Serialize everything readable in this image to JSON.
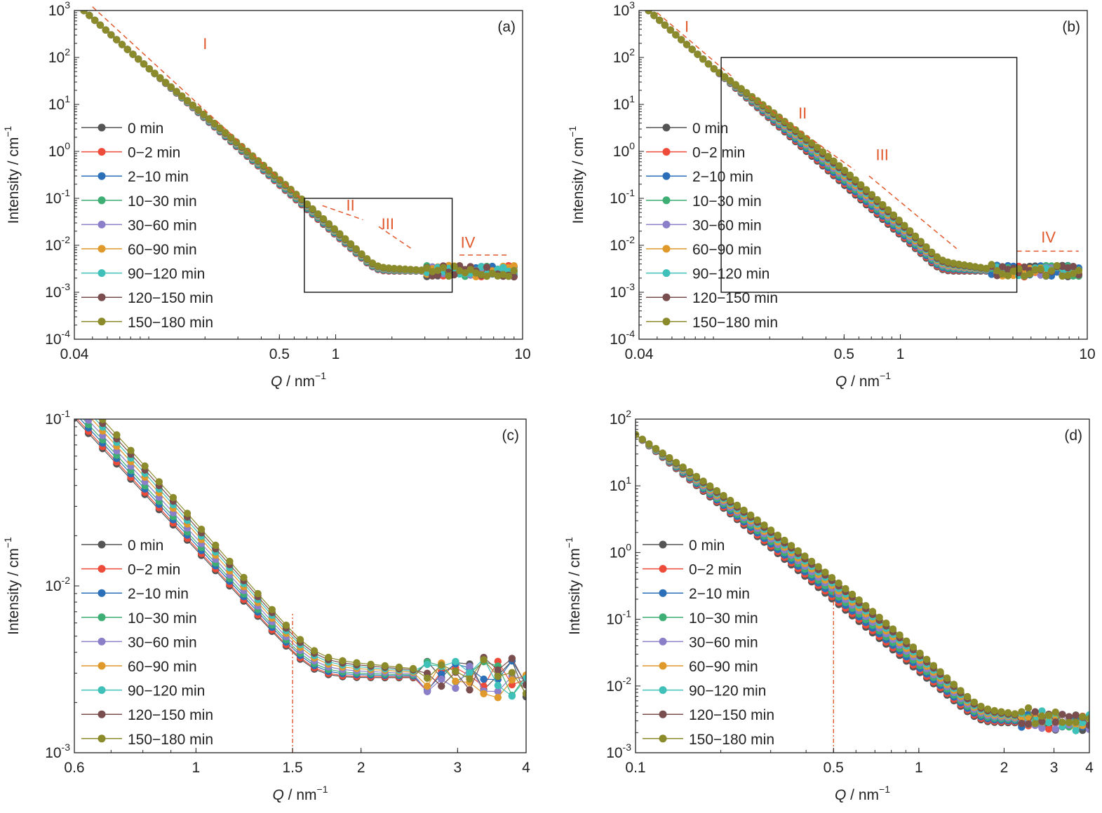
{
  "series_colors": [
    "#555555",
    "#ee4b3a",
    "#2a6fb8",
    "#3fae74",
    "#8a7fc8",
    "#e09a2c",
    "#3fc0b8",
    "#7a4e4e",
    "#8c8b2c"
  ],
  "chart_data": [
    {
      "id": "a",
      "type": "line",
      "panel_label": "(a)",
      "scale": "log-log",
      "grid": false,
      "legend_position": "center-left",
      "xlabel_italic": "Q",
      "xlabel_rest": " / nm",
      "xlabel_sup": "−1",
      "ylabel_main": "Intensity / cm",
      "ylabel_sup": "−1",
      "xlim": [
        0.04,
        10
      ],
      "ylim": [
        0.0001,
        1000
      ],
      "x_ticks": [
        {
          "v": 0.04,
          "label": "0.04"
        },
        {
          "v": 0.5,
          "label": "0.5"
        },
        {
          "v": 1,
          "label": "1"
        },
        {
          "v": 10,
          "label": "10"
        }
      ],
      "y_ticks": [
        {
          "v": 0.0001,
          "b": "10",
          "e": "-4"
        },
        {
          "v": 0.001,
          "b": "10",
          "e": "-3"
        },
        {
          "v": 0.01,
          "b": "10",
          "e": "-2"
        },
        {
          "v": 0.1,
          "b": "10",
          "e": "-1"
        },
        {
          "v": 1,
          "b": "10",
          "e": "0"
        },
        {
          "v": 10,
          "b": "10",
          "e": "1"
        },
        {
          "v": 100,
          "b": "10",
          "e": "2"
        },
        {
          "v": 1000,
          "b": "10",
          "e": "3"
        }
      ],
      "legend": [
        "0 min",
        "0−2 min",
        "2−10 min",
        "10−30 min",
        "30−60 min",
        "60−90 min",
        "90−120 min",
        "120−150 min",
        "150−180 min"
      ],
      "series_curve": {
        "q_min": 0.045,
        "q_max": 9,
        "n_points": 80,
        "noisy_above_q": 3
      },
      "series_spread": [
        1.0,
        1.02,
        1.06,
        1.1,
        1.16,
        1.2,
        1.24,
        1.28,
        1.32
      ],
      "region_labels": [
        {
          "text": "I",
          "q": 0.2,
          "i": 150
        },
        {
          "text": "II",
          "q": 1.2,
          "i": 0.055
        },
        {
          "text": "III",
          "q": 1.9,
          "i": 0.022
        },
        {
          "text": "IV",
          "q": 5.1,
          "i": 0.0088
        }
      ],
      "guide_lines": [
        {
          "q": [
            0.05,
            0.65
          ],
          "i": [
            1200,
            0.1
          ],
          "dash": true
        },
        {
          "q": [
            0.85,
            1.4
          ],
          "i": [
            0.07,
            0.035
          ],
          "dash": true
        },
        {
          "q": [
            1.7,
            2.6
          ],
          "i": [
            0.025,
            0.008
          ],
          "dash": true
        },
        {
          "q": [
            4.6,
            8.4
          ],
          "i": [
            0.0062,
            0.0062
          ],
          "dash": true
        }
      ],
      "box": {
        "q": [
          0.68,
          4.2
        ],
        "i": [
          0.001,
          0.1
        ]
      }
    },
    {
      "id": "b",
      "type": "line",
      "panel_label": "(b)",
      "scale": "log-log",
      "grid": false,
      "legend_position": "center-left",
      "xlabel_italic": "Q",
      "xlabel_rest": " / nm",
      "xlabel_sup": "−1",
      "ylabel_main": "Intensity / cm",
      "ylabel_sup": "−1",
      "xlim": [
        0.04,
        10
      ],
      "ylim": [
        0.0001,
        1000
      ],
      "x_ticks": [
        {
          "v": 0.04,
          "label": "0.04"
        },
        {
          "v": 0.5,
          "label": "0.5"
        },
        {
          "v": 1,
          "label": "1"
        },
        {
          "v": 10,
          "label": "10"
        }
      ],
      "y_ticks": [
        {
          "v": 0.0001,
          "b": "10",
          "e": "-4"
        },
        {
          "v": 0.001,
          "b": "10",
          "e": "-3"
        },
        {
          "v": 0.01,
          "b": "10",
          "e": "-2"
        },
        {
          "v": 0.1,
          "b": "10",
          "e": "-1"
        },
        {
          "v": 1,
          "b": "10",
          "e": "0"
        },
        {
          "v": 10,
          "b": "10",
          "e": "1"
        },
        {
          "v": 100,
          "b": "10",
          "e": "2"
        },
        {
          "v": 1000,
          "b": "10",
          "e": "3"
        }
      ],
      "legend": [
        "0 min",
        "0−2 min",
        "2−10 min",
        "10−30 min",
        "30−60 min",
        "60−90 min",
        "90−120 min",
        "120−150 min",
        "150−180 min"
      ],
      "series_curve": {
        "q_min": 0.045,
        "q_max": 9,
        "n_points": 80,
        "noisy_above_q": 3
      },
      "series_spread": [
        1.0,
        1.08,
        1.18,
        1.3,
        1.45,
        1.6,
        1.75,
        1.9,
        2.1
      ],
      "region_labels": [
        {
          "text": "I",
          "q": 0.072,
          "i": 350
        },
        {
          "text": "II",
          "q": 0.3,
          "i": 5
        },
        {
          "text": "III",
          "q": 0.8,
          "i": 0.65
        },
        {
          "text": "IV",
          "q": 6.2,
          "i": 0.0115
        }
      ],
      "guide_lines": [
        {
          "q": [
            0.05,
            0.125
          ],
          "i": [
            900,
            40
          ],
          "dash": true
        },
        {
          "q": [
            0.16,
            0.57
          ],
          "i": [
            15,
            0.4
          ],
          "dash": true
        },
        {
          "q": [
            0.68,
            2
          ],
          "i": [
            0.3,
            0.0085
          ],
          "dash": true
        },
        {
          "q": [
            4.2,
            9
          ],
          "i": [
            0.0075,
            0.0075
          ],
          "dash": true
        }
      ],
      "box": {
        "q": [
          0.11,
          4.2
        ],
        "i": [
          0.001,
          100
        ]
      }
    },
    {
      "id": "c",
      "type": "line",
      "panel_label": "(c)",
      "scale": "log-log",
      "grid": false,
      "legend_position": "center-left",
      "xlabel_italic": "Q",
      "xlabel_rest": " / nm",
      "xlabel_sup": "−1",
      "ylabel_main": "Intensity / cm",
      "ylabel_sup": "−1",
      "xlim": [
        0.6,
        4
      ],
      "ylim": [
        0.001,
        0.1
      ],
      "x_ticks": [
        {
          "v": 0.6,
          "label": "0.6"
        },
        {
          "v": 1,
          "label": "1"
        },
        {
          "v": 1.5,
          "label": "1.5"
        },
        {
          "v": 2,
          "label": "2"
        },
        {
          "v": 3,
          "label": "3"
        },
        {
          "v": 4,
          "label": "4"
        }
      ],
      "y_ticks": [
        {
          "v": 0.001,
          "b": "10",
          "e": "-3"
        },
        {
          "v": 0.01,
          "b": "10",
          "e": "-2"
        },
        {
          "v": 0.1,
          "b": "10",
          "e": "-1"
        }
      ],
      "legend": [
        "0 min",
        "0−2 min",
        "2−10 min",
        "10−30 min",
        "30−60 min",
        "60−90 min",
        "90−120 min",
        "120−150 min",
        "150−180 min"
      ],
      "series_curve": {
        "q_min": 0.6,
        "q_max": 4,
        "n_points": 33,
        "noisy_above_q": 2.6
      },
      "series_spread": [
        1.0,
        1.03,
        1.08,
        1.13,
        1.2,
        1.28,
        1.35,
        1.42,
        1.5
      ],
      "vline": {
        "q": 1.5,
        "i": [
          0.001,
          0.0068
        ]
      },
      "region_labels": [],
      "guide_lines": []
    },
    {
      "id": "d",
      "type": "line",
      "panel_label": "(d)",
      "scale": "log-log",
      "grid": false,
      "legend_position": "center-left",
      "xlabel_italic": "Q",
      "xlabel_rest": " / nm",
      "xlabel_sup": "−1",
      "ylabel_main": "Intensity / cm",
      "ylabel_sup": "−1",
      "xlim": [
        0.1,
        4
      ],
      "ylim": [
        0.001,
        100
      ],
      "x_ticks": [
        {
          "v": 0.1,
          "label": "0.1"
        },
        {
          "v": 0.5,
          "label": "0.5"
        },
        {
          "v": 1,
          "label": "1"
        },
        {
          "v": 2,
          "label": "2"
        },
        {
          "v": 3,
          "label": "3"
        },
        {
          "v": 4,
          "label": "4"
        }
      ],
      "y_ticks": [
        {
          "v": 0.001,
          "b": "10",
          "e": "-3"
        },
        {
          "v": 0.01,
          "b": "10",
          "e": "-2"
        },
        {
          "v": 0.1,
          "b": "10",
          "e": "-1"
        },
        {
          "v": 1,
          "b": "10",
          "e": "0"
        },
        {
          "v": 10,
          "b": "10",
          "e": "1"
        },
        {
          "v": 100,
          "b": "10",
          "e": "2"
        }
      ],
      "legend": [
        "0 min",
        "0−2 min",
        "2−10 min",
        "10−30 min",
        "30−60 min",
        "60−90 min",
        "90−120 min",
        "120−150 min",
        "150−180 min"
      ],
      "series_curve": {
        "q_min": 0.1,
        "q_max": 4,
        "n_points": 68,
        "noisy_above_q": 2.2
      },
      "series_spread": [
        1.0,
        1.08,
        1.18,
        1.3,
        1.45,
        1.6,
        1.75,
        1.9,
        2.1
      ],
      "vline": {
        "q": 0.5,
        "i": [
          0.001,
          0.3
        ]
      },
      "region_labels": [],
      "guide_lines": []
    }
  ]
}
